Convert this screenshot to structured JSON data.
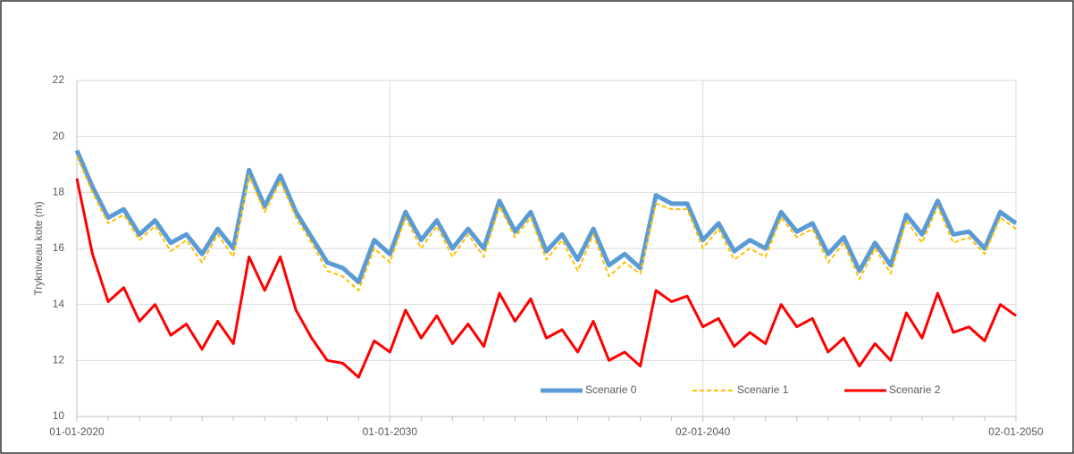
{
  "chart_data": {
    "type": "line",
    "ylabel": "Trykniveau kote (m)",
    "x": [
      2020,
      2020.5,
      2021,
      2021.5,
      2022,
      2022.5,
      2023,
      2023.5,
      2024,
      2024.5,
      2025,
      2025.5,
      2026,
      2026.5,
      2027,
      2027.5,
      2028,
      2028.5,
      2029,
      2029.5,
      2030,
      2030.5,
      2031,
      2031.5,
      2032,
      2032.5,
      2033,
      2033.5,
      2034,
      2034.5,
      2035,
      2035.5,
      2036,
      2036.5,
      2037,
      2037.5,
      2038,
      2038.5,
      2039,
      2039.5,
      2040,
      2040.5,
      2041,
      2041.5,
      2042,
      2042.5,
      2043,
      2043.5,
      2044,
      2044.5,
      2045,
      2045.5,
      2046,
      2046.5,
      2047,
      2047.5,
      2048,
      2048.5,
      2049,
      2049.5,
      2050
    ],
    "series": [
      {
        "name": "Scenarie 0",
        "color": "#5b9bd5",
        "values": [
          19.5,
          18.2,
          17.1,
          17.4,
          16.5,
          17.0,
          16.2,
          16.5,
          15.8,
          16.7,
          16.0,
          18.8,
          17.5,
          18.6,
          17.3,
          16.4,
          15.5,
          15.3,
          14.8,
          16.3,
          15.8,
          17.3,
          16.3,
          17.0,
          16.0,
          16.7,
          16.0,
          17.7,
          16.6,
          17.3,
          15.9,
          16.5,
          15.6,
          16.7,
          15.4,
          15.8,
          15.3,
          17.9,
          17.6,
          17.6,
          16.3,
          16.9,
          15.9,
          16.3,
          16.0,
          17.3,
          16.6,
          16.9,
          15.8,
          16.4,
          15.2,
          16.2,
          15.4,
          17.2,
          16.5,
          17.7,
          16.5,
          16.6,
          16.0,
          17.3,
          16.9
        ]
      },
      {
        "name": "Scenarie 1",
        "color": "#ffc000",
        "values": [
          19.3,
          18.0,
          16.9,
          17.2,
          16.3,
          16.8,
          15.9,
          16.3,
          15.5,
          16.5,
          15.7,
          18.6,
          17.3,
          18.4,
          17.1,
          16.2,
          15.2,
          15.0,
          14.5,
          16.0,
          15.5,
          17.1,
          16.0,
          16.8,
          15.7,
          16.5,
          15.7,
          17.5,
          16.4,
          17.1,
          15.6,
          16.3,
          15.2,
          16.5,
          15.0,
          15.5,
          15.1,
          17.6,
          17.4,
          17.4,
          16.0,
          16.7,
          15.6,
          16.0,
          15.7,
          17.1,
          16.4,
          16.7,
          15.5,
          16.2,
          14.9,
          16.0,
          15.1,
          17.0,
          16.2,
          17.5,
          16.2,
          16.4,
          15.8,
          17.1,
          16.7
        ]
      },
      {
        "name": "Scenarie 2",
        "color": "#ff0000",
        "values": [
          18.5,
          15.8,
          14.1,
          14.6,
          13.4,
          14.0,
          12.9,
          13.3,
          12.4,
          13.4,
          12.6,
          15.7,
          14.5,
          15.7,
          13.8,
          12.8,
          12.0,
          11.9,
          11.4,
          12.7,
          12.3,
          13.8,
          12.8,
          13.6,
          12.6,
          13.3,
          12.5,
          14.4,
          13.4,
          14.2,
          12.8,
          13.1,
          12.3,
          13.4,
          12.0,
          12.3,
          11.8,
          14.5,
          14.1,
          14.3,
          13.2,
          13.5,
          12.5,
          13.0,
          12.6,
          14.0,
          13.2,
          13.5,
          12.3,
          12.8,
          11.8,
          12.6,
          12.0,
          13.7,
          12.8,
          14.4,
          13.0,
          13.2,
          12.7,
          14.0,
          13.6
        ]
      }
    ],
    "xlim": [
      2020,
      2050
    ],
    "xticks": [
      {
        "value": 2020,
        "label": "01-01-2020"
      },
      {
        "value": 2030,
        "label": "01-01-2030"
      },
      {
        "value": 2040,
        "label": "02-01-2040"
      },
      {
        "value": 2050,
        "label": "02-01-2050"
      }
    ],
    "xminorticks": [
      2021,
      2022,
      2023,
      2024,
      2025,
      2026,
      2027,
      2028,
      2029,
      2031,
      2032,
      2033,
      2034,
      2035,
      2036,
      2037,
      2038,
      2039,
      2041,
      2042,
      2043,
      2044,
      2045,
      2046,
      2047,
      2048,
      2049
    ],
    "ylim": [
      10,
      22
    ],
    "yticks": [
      10,
      12,
      14,
      16,
      18,
      20,
      22
    ],
    "grid": true,
    "legend": "bottom-right"
  }
}
